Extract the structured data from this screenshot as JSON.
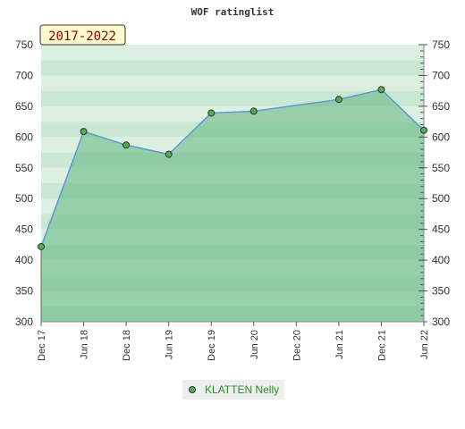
{
  "chart_data": {
    "type": "area",
    "title": "WOF ratinglist",
    "period_badge": "2017-2022",
    "categories": [
      "Dec 17",
      "Jun 18",
      "Dec 18",
      "Jun 19",
      "Dec 19",
      "Jun 20",
      "Dec 20",
      "Jun 21",
      "Dec 21",
      "Jun 22"
    ],
    "x_positions": [
      0,
      6,
      12,
      18,
      24,
      30,
      36,
      42,
      48,
      54
    ],
    "series": [
      {
        "name": "KLATTEN Nelly",
        "x": [
          0,
          6,
          12,
          18,
          24,
          30,
          42,
          48,
          54
        ],
        "values": [
          422,
          609,
          587,
          572,
          639,
          642,
          661,
          677,
          611
        ]
      }
    ],
    "ylim": [
      300,
      750
    ],
    "yticks": [
      300,
      350,
      400,
      450,
      500,
      550,
      600,
      650,
      700,
      750
    ],
    "grid": true,
    "legend": "bottom-center",
    "colors": {
      "line": "#5b9bd5",
      "area": "#7dc495",
      "marker": "#4caf50",
      "badge_bg": "#fffacd",
      "badge_text": "#8b0000",
      "legend_text": "#2e8b2e"
    }
  }
}
